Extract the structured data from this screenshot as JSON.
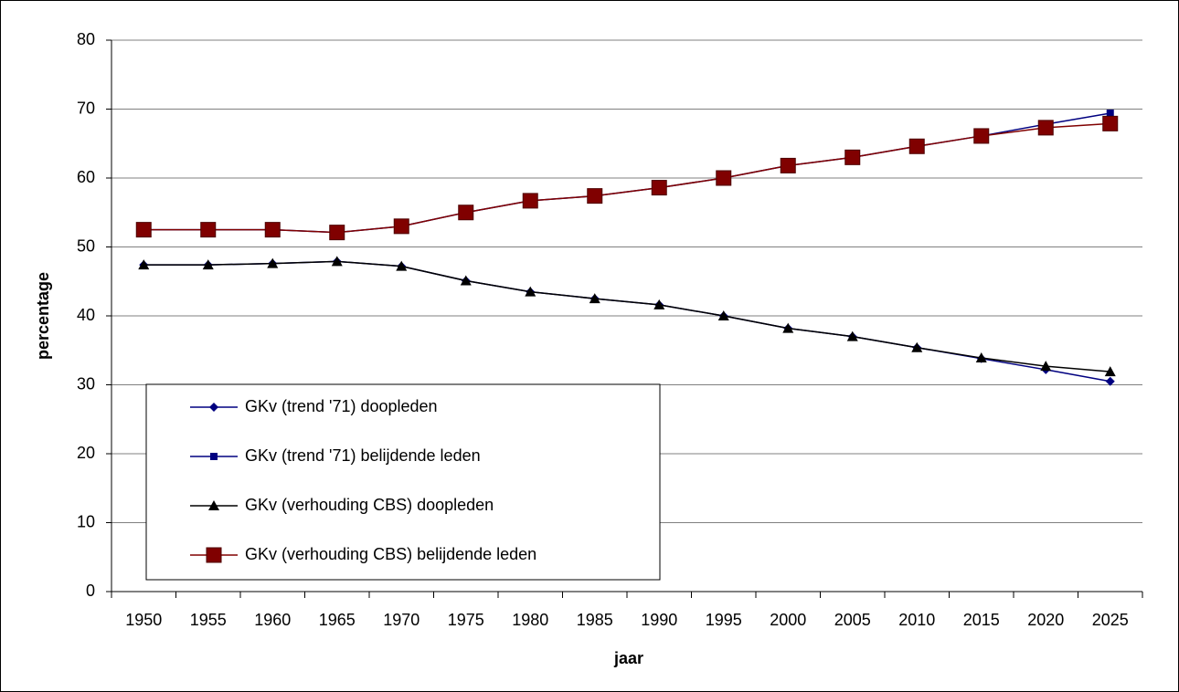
{
  "chart_data": {
    "type": "line",
    "x_label": "jaar",
    "y_label": "percentage",
    "categories": [
      "1950",
      "1955",
      "1960",
      "1965",
      "1970",
      "1975",
      "1980",
      "1985",
      "1990",
      "1995",
      "2000",
      "2005",
      "2010",
      "2015",
      "2020",
      "2025"
    ],
    "series": [
      {
        "name": "GKv (trend '71) doopleden",
        "color": "#000080",
        "marker": "diamond",
        "values": [
          47.4,
          47.4,
          47.6,
          47.9,
          47.2,
          45.1,
          43.5,
          42.5,
          41.6,
          40.0,
          38.2,
          37.0,
          35.4,
          33.8,
          32.2,
          30.5
        ]
      },
      {
        "name": "GKv (trend '71) belijdende leden",
        "color": "#000080",
        "marker": "square",
        "values": [
          52.5,
          52.5,
          52.5,
          52.1,
          53.0,
          55.0,
          56.7,
          57.4,
          58.6,
          60.0,
          61.8,
          63.0,
          64.6,
          66.1,
          67.8,
          69.4
        ]
      },
      {
        "name": "GKv (verhouding CBS) doopleden",
        "color": "#000000",
        "marker": "triangle",
        "values": [
          47.4,
          47.4,
          47.6,
          47.9,
          47.2,
          45.1,
          43.5,
          42.5,
          41.6,
          40.0,
          38.2,
          37.0,
          35.4,
          33.9,
          32.7,
          31.9
        ]
      },
      {
        "name": "GKv (verhouding CBS) belijdende leden",
        "color": "#800000",
        "marker": "big-square",
        "values": [
          52.5,
          52.5,
          52.5,
          52.1,
          53.0,
          55.0,
          56.7,
          57.4,
          58.6,
          60.0,
          61.8,
          63.0,
          64.6,
          66.1,
          67.3,
          67.9
        ]
      }
    ],
    "ylim": [
      0,
      80
    ],
    "yticks": [
      0,
      10,
      20,
      30,
      40,
      50,
      60,
      70,
      80
    ],
    "grid": true,
    "legend": "lower-left"
  }
}
